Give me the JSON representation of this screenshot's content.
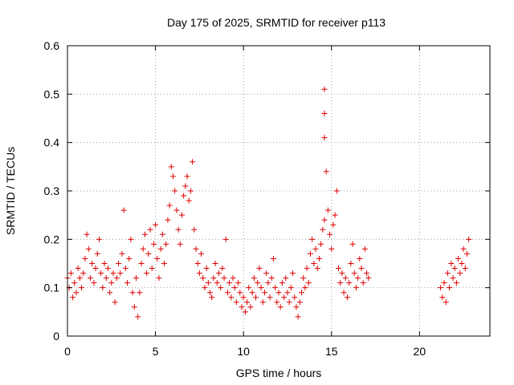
{
  "chart_data": {
    "type": "scatter",
    "title": "Day 175 of 2025, SRMTID for receiver p113",
    "xlabel": "GPS time / hours",
    "ylabel": "SRMTID / TECUs",
    "xlim": [
      0,
      24
    ],
    "ylim": [
      0,
      0.6
    ],
    "xticks": [
      0,
      5,
      10,
      15,
      20
    ],
    "xtick_labels": [
      "0",
      "5",
      "10",
      "15",
      "20"
    ],
    "yticks": [
      0,
      0.1,
      0.2,
      0.3,
      0.4,
      0.5,
      0.6
    ],
    "ytick_labels": [
      "0",
      "0.1",
      "0.2",
      "0.3",
      "0.4",
      "0.5",
      "0.6"
    ],
    "grid": true,
    "marker": "plus",
    "color": "#e00000",
    "series": [
      {
        "name": "SRMTID",
        "points": [
          [
            0.0,
            0.12
          ],
          [
            0.1,
            0.1
          ],
          [
            0.2,
            0.13
          ],
          [
            0.3,
            0.08
          ],
          [
            0.4,
            0.11
          ],
          [
            0.5,
            0.09
          ],
          [
            0.6,
            0.14
          ],
          [
            0.7,
            0.12
          ],
          [
            0.8,
            0.1
          ],
          [
            0.9,
            0.13
          ],
          [
            1.0,
            0.16
          ],
          [
            1.1,
            0.21
          ],
          [
            1.2,
            0.18
          ],
          [
            1.3,
            0.12
          ],
          [
            1.4,
            0.15
          ],
          [
            1.5,
            0.11
          ],
          [
            1.6,
            0.14
          ],
          [
            1.7,
            0.17
          ],
          [
            1.8,
            0.2
          ],
          [
            1.9,
            0.13
          ],
          [
            2.0,
            0.1
          ],
          [
            2.1,
            0.15
          ],
          [
            2.2,
            0.12
          ],
          [
            2.3,
            0.14
          ],
          [
            2.4,
            0.09
          ],
          [
            2.5,
            0.11
          ],
          [
            2.6,
            0.13
          ],
          [
            2.7,
            0.07
          ],
          [
            2.8,
            0.12
          ],
          [
            2.9,
            0.15
          ],
          [
            3.0,
            0.13
          ],
          [
            3.1,
            0.17
          ],
          [
            3.2,
            0.26
          ],
          [
            3.3,
            0.14
          ],
          [
            3.4,
            0.11
          ],
          [
            3.5,
            0.16
          ],
          [
            3.6,
            0.2
          ],
          [
            3.7,
            0.09
          ],
          [
            3.8,
            0.06
          ],
          [
            3.9,
            0.12
          ],
          [
            4.0,
            0.04
          ],
          [
            4.1,
            0.09
          ],
          [
            4.2,
            0.15
          ],
          [
            4.3,
            0.18
          ],
          [
            4.4,
            0.21
          ],
          [
            4.5,
            0.13
          ],
          [
            4.6,
            0.17
          ],
          [
            4.7,
            0.22
          ],
          [
            4.8,
            0.14
          ],
          [
            4.9,
            0.19
          ],
          [
            5.0,
            0.23
          ],
          [
            5.1,
            0.16
          ],
          [
            5.2,
            0.12
          ],
          [
            5.3,
            0.18
          ],
          [
            5.4,
            0.21
          ],
          [
            5.5,
            0.15
          ],
          [
            5.6,
            0.19
          ],
          [
            5.7,
            0.24
          ],
          [
            5.8,
            0.27
          ],
          [
            5.9,
            0.35
          ],
          [
            6.0,
            0.33
          ],
          [
            6.1,
            0.3
          ],
          [
            6.2,
            0.26
          ],
          [
            6.3,
            0.22
          ],
          [
            6.4,
            0.19
          ],
          [
            6.5,
            0.25
          ],
          [
            6.6,
            0.29
          ],
          [
            6.7,
            0.31
          ],
          [
            6.8,
            0.33
          ],
          [
            6.9,
            0.28
          ],
          [
            7.0,
            0.3
          ],
          [
            7.1,
            0.36
          ],
          [
            7.2,
            0.22
          ],
          [
            7.3,
            0.18
          ],
          [
            7.4,
            0.15
          ],
          [
            7.5,
            0.13
          ],
          [
            7.6,
            0.17
          ],
          [
            7.7,
            0.12
          ],
          [
            7.8,
            0.1
          ],
          [
            7.9,
            0.14
          ],
          [
            8.0,
            0.11
          ],
          [
            8.1,
            0.09
          ],
          [
            8.2,
            0.08
          ],
          [
            8.3,
            0.12
          ],
          [
            8.4,
            0.15
          ],
          [
            8.5,
            0.11
          ],
          [
            8.6,
            0.13
          ],
          [
            8.7,
            0.1
          ],
          [
            8.8,
            0.14
          ],
          [
            8.9,
            0.12
          ],
          [
            9.0,
            0.2
          ],
          [
            9.1,
            0.09
          ],
          [
            9.2,
            0.11
          ],
          [
            9.3,
            0.08
          ],
          [
            9.4,
            0.12
          ],
          [
            9.5,
            0.1
          ],
          [
            9.6,
            0.07
          ],
          [
            9.7,
            0.11
          ],
          [
            9.8,
            0.09
          ],
          [
            9.9,
            0.06
          ],
          [
            10.0,
            0.08
          ],
          [
            10.1,
            0.05
          ],
          [
            10.2,
            0.07
          ],
          [
            10.3,
            0.1
          ],
          [
            10.4,
            0.06
          ],
          [
            10.5,
            0.09
          ],
          [
            10.6,
            0.12
          ],
          [
            10.7,
            0.08
          ],
          [
            10.8,
            0.11
          ],
          [
            10.9,
            0.14
          ],
          [
            11.0,
            0.1
          ],
          [
            11.1,
            0.07
          ],
          [
            11.2,
            0.09
          ],
          [
            11.3,
            0.13
          ],
          [
            11.4,
            0.11
          ],
          [
            11.5,
            0.08
          ],
          [
            11.6,
            0.12
          ],
          [
            11.7,
            0.16
          ],
          [
            11.8,
            0.1
          ],
          [
            11.9,
            0.07
          ],
          [
            12.0,
            0.09
          ],
          [
            12.1,
            0.06
          ],
          [
            12.2,
            0.11
          ],
          [
            12.3,
            0.08
          ],
          [
            12.4,
            0.12
          ],
          [
            12.5,
            0.09
          ],
          [
            12.6,
            0.07
          ],
          [
            12.7,
            0.1
          ],
          [
            12.8,
            0.13
          ],
          [
            12.9,
            0.08
          ],
          [
            13.0,
            0.06
          ],
          [
            13.1,
            0.04
          ],
          [
            13.2,
            0.07
          ],
          [
            13.3,
            0.09
          ],
          [
            13.4,
            0.12
          ],
          [
            13.5,
            0.1
          ],
          [
            13.6,
            0.14
          ],
          [
            13.7,
            0.11
          ],
          [
            13.8,
            0.17
          ],
          [
            13.9,
            0.2
          ],
          [
            14.0,
            0.15
          ],
          [
            14.1,
            0.18
          ],
          [
            14.2,
            0.14
          ],
          [
            14.3,
            0.16
          ],
          [
            14.4,
            0.19
          ],
          [
            14.5,
            0.22
          ],
          [
            14.6,
            0.24
          ],
          [
            14.6,
            0.51
          ],
          [
            14.6,
            0.46
          ],
          [
            14.6,
            0.41
          ],
          [
            14.7,
            0.34
          ],
          [
            14.8,
            0.26
          ],
          [
            14.9,
            0.21
          ],
          [
            15.0,
            0.18
          ],
          [
            15.1,
            0.23
          ],
          [
            15.2,
            0.25
          ],
          [
            15.3,
            0.3
          ],
          [
            15.4,
            0.14
          ],
          [
            15.5,
            0.11
          ],
          [
            15.6,
            0.13
          ],
          [
            15.7,
            0.09
          ],
          [
            15.8,
            0.12
          ],
          [
            15.9,
            0.08
          ],
          [
            16.0,
            0.11
          ],
          [
            16.1,
            0.15
          ],
          [
            16.2,
            0.19
          ],
          [
            16.3,
            0.13
          ],
          [
            16.4,
            0.1
          ],
          [
            16.5,
            0.12
          ],
          [
            16.6,
            0.16
          ],
          [
            16.7,
            0.14
          ],
          [
            16.8,
            0.11
          ],
          [
            16.9,
            0.18
          ],
          [
            17.0,
            0.13
          ],
          [
            17.1,
            0.12
          ],
          [
            21.2,
            0.1
          ],
          [
            21.3,
            0.08
          ],
          [
            21.4,
            0.11
          ],
          [
            21.5,
            0.07
          ],
          [
            21.6,
            0.13
          ],
          [
            21.7,
            0.1
          ],
          [
            21.8,
            0.15
          ],
          [
            21.9,
            0.12
          ],
          [
            22.0,
            0.14
          ],
          [
            22.1,
            0.11
          ],
          [
            22.2,
            0.16
          ],
          [
            22.3,
            0.13
          ],
          [
            22.4,
            0.15
          ],
          [
            22.5,
            0.18
          ],
          [
            22.6,
            0.14
          ],
          [
            22.7,
            0.17
          ],
          [
            22.8,
            0.2
          ]
        ]
      }
    ]
  }
}
